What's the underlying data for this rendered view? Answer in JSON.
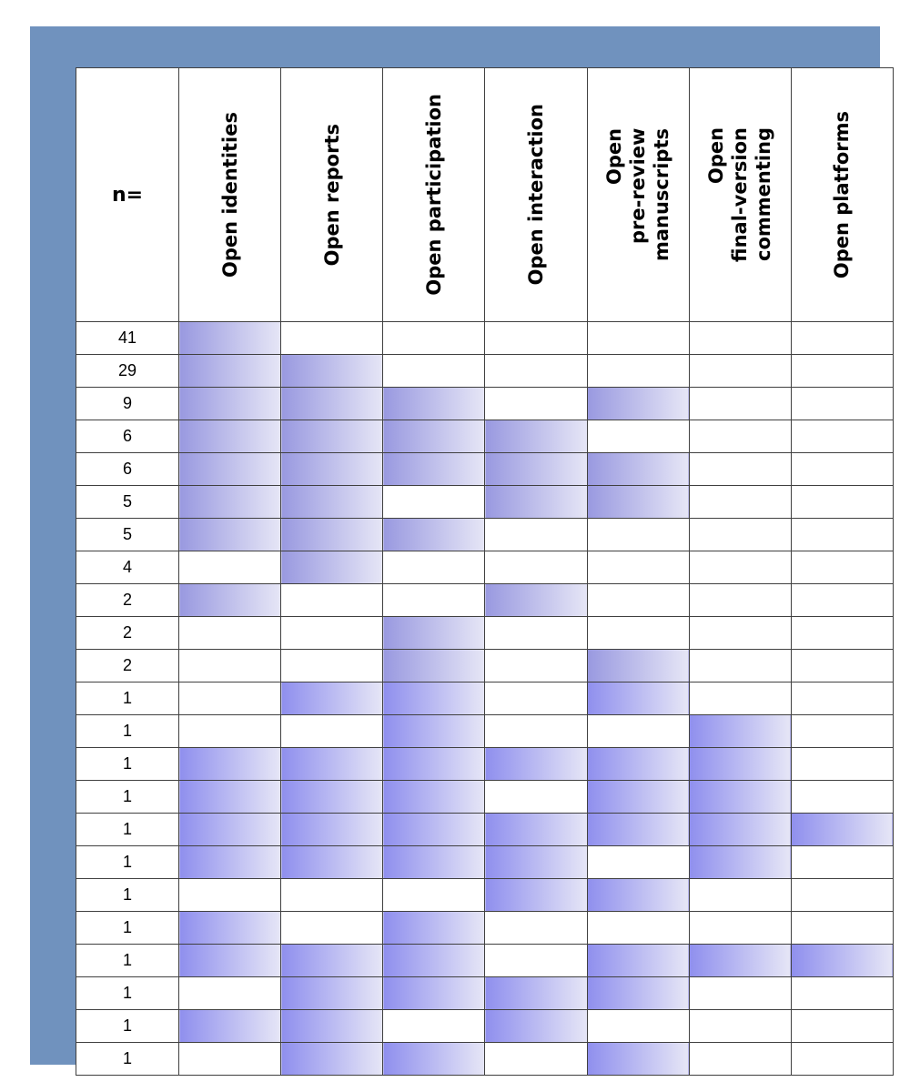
{
  "table": {
    "n_header": "n=",
    "columns": [
      "Open identities",
      "Open reports",
      "Open participation",
      "Open interaction",
      "Open\npre-review\nmanuscripts",
      "Open\nfinal-version\ncommenting",
      "Open platforms"
    ]
  },
  "colors": {
    "frame": "#7092be",
    "shade_start": "#9999e0",
    "shade_start_bright": "#8f8fee",
    "shade_end": "#e6e6f6"
  },
  "chart_data": {
    "type": "table",
    "columns": [
      "n=",
      "Open identities",
      "Open reports",
      "Open participation",
      "Open interaction",
      "Open pre-review manuscripts",
      "Open final-version commenting",
      "Open platforms"
    ],
    "rows": [
      {
        "n": 41,
        "traits": [
          1,
          0,
          0,
          0,
          0,
          0,
          0
        ]
      },
      {
        "n": 29,
        "traits": [
          1,
          1,
          0,
          0,
          0,
          0,
          0
        ]
      },
      {
        "n": 9,
        "traits": [
          1,
          1,
          1,
          0,
          1,
          0,
          0
        ]
      },
      {
        "n": 6,
        "traits": [
          1,
          1,
          1,
          1,
          0,
          0,
          0
        ]
      },
      {
        "n": 6,
        "traits": [
          1,
          1,
          1,
          1,
          1,
          0,
          0
        ]
      },
      {
        "n": 5,
        "traits": [
          1,
          1,
          0,
          1,
          1,
          0,
          0
        ]
      },
      {
        "n": 5,
        "traits": [
          1,
          1,
          1,
          0,
          0,
          0,
          0
        ]
      },
      {
        "n": 4,
        "traits": [
          0,
          1,
          0,
          0,
          0,
          0,
          0
        ]
      },
      {
        "n": 2,
        "traits": [
          1,
          0,
          0,
          1,
          0,
          0,
          0
        ]
      },
      {
        "n": 2,
        "traits": [
          0,
          0,
          1,
          0,
          0,
          0,
          0
        ]
      },
      {
        "n": 2,
        "traits": [
          0,
          0,
          1,
          0,
          1,
          0,
          0
        ]
      },
      {
        "n": 1,
        "traits": [
          0,
          1,
          1,
          0,
          1,
          0,
          0
        ]
      },
      {
        "n": 1,
        "traits": [
          0,
          0,
          1,
          0,
          0,
          1,
          0
        ]
      },
      {
        "n": 1,
        "traits": [
          1,
          1,
          1,
          1,
          1,
          1,
          0
        ]
      },
      {
        "n": 1,
        "traits": [
          1,
          1,
          1,
          0,
          1,
          1,
          0
        ]
      },
      {
        "n": 1,
        "traits": [
          1,
          1,
          1,
          1,
          1,
          1,
          1
        ]
      },
      {
        "n": 1,
        "traits": [
          1,
          1,
          1,
          1,
          0,
          1,
          0
        ]
      },
      {
        "n": 1,
        "traits": [
          0,
          0,
          0,
          1,
          1,
          0,
          0
        ]
      },
      {
        "n": 1,
        "traits": [
          1,
          0,
          1,
          0,
          0,
          0,
          0
        ]
      },
      {
        "n": 1,
        "traits": [
          1,
          1,
          1,
          0,
          1,
          1,
          1
        ]
      },
      {
        "n": 1,
        "traits": [
          0,
          1,
          1,
          1,
          1,
          0,
          0
        ]
      },
      {
        "n": 1,
        "traits": [
          1,
          1,
          0,
          1,
          0,
          0,
          0
        ]
      },
      {
        "n": 1,
        "traits": [
          0,
          1,
          1,
          0,
          1,
          0,
          0
        ]
      }
    ],
    "bright_from_row": 11
  }
}
